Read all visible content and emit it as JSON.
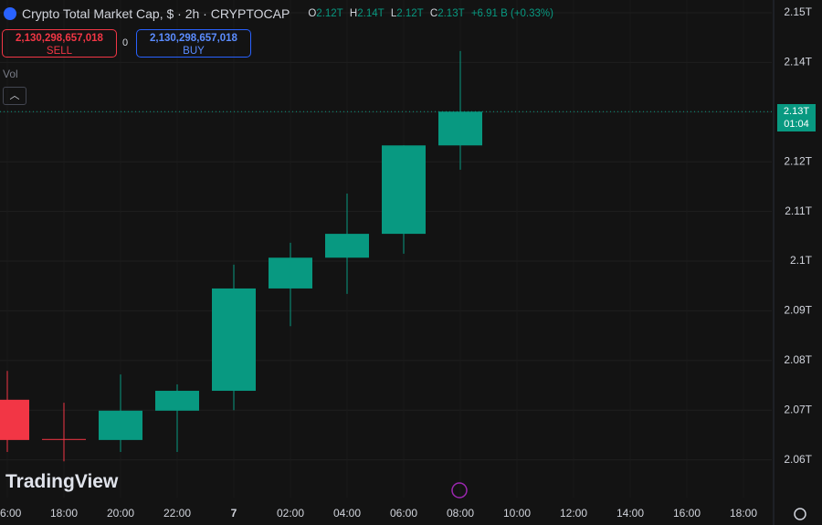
{
  "header": {
    "title": "Crypto Total Market Cap, $ · 2h · CRYPTOCAP",
    "ohlc": [
      {
        "key": "O",
        "value": "2.12T"
      },
      {
        "key": "H",
        "value": "2.14T"
      },
      {
        "key": "L",
        "value": "2.12T"
      },
      {
        "key": "C",
        "value": "2.13T"
      }
    ],
    "change": "+6.91 B (+0.33%)"
  },
  "trade": {
    "sell_price": "2,130,298,657,018",
    "sell_label": "SELL",
    "spread": "0",
    "buy_price": "2,130,298,657,018",
    "buy_label": "BUY"
  },
  "volume_label": "Vol",
  "logo": "TradingView",
  "price_tag": {
    "label": "2.13T",
    "countdown": "01:04"
  },
  "chart_data": {
    "type": "candlestick",
    "categories": [
      "6:00",
      "18:00",
      "20:00",
      "22:00",
      "7",
      "02:00",
      "04:00",
      "06:00",
      "08:00",
      "10:00",
      "12:00",
      "14:00",
      "16:00",
      "18:00"
    ],
    "open": [
      2.0721,
      2.0642,
      2.064,
      2.0699,
      2.0739,
      2.0945,
      2.1007,
      2.1055,
      2.1233,
      null,
      null,
      null,
      null,
      null
    ],
    "high": [
      2.0779,
      2.0715,
      2.0772,
      2.0752,
      2.0993,
      2.1037,
      2.1136,
      2.1233,
      2.1423,
      null,
      null,
      null,
      null,
      null
    ],
    "low": [
      2.0616,
      2.0597,
      2.0616,
      2.0616,
      2.07,
      2.0869,
      2.0934,
      2.1015,
      2.1184,
      null,
      null,
      null,
      null,
      null
    ],
    "close": [
      2.064,
      2.0642,
      2.0699,
      2.0739,
      2.0945,
      2.1007,
      2.1055,
      2.1233,
      2.1301,
      null,
      null,
      null,
      null,
      null
    ],
    "up_color": "#089981",
    "down_color": "#f23645",
    "ylim": [
      2.0524,
      2.15
    ],
    "yticks": [
      {
        "value": 2.06,
        "label": "2.06T"
      },
      {
        "value": 2.07,
        "label": "2.07T"
      },
      {
        "value": 2.08,
        "label": "2.08T"
      },
      {
        "value": 2.09,
        "label": "2.09T"
      },
      {
        "value": 2.1,
        "label": "2.1T"
      },
      {
        "value": 2.11,
        "label": "2.11T"
      },
      {
        "value": 2.12,
        "label": "2.12T"
      },
      {
        "value": 2.13,
        "label": "2.13T"
      },
      {
        "value": 2.14,
        "label": "2.14T"
      },
      {
        "value": 2.15,
        "label": "2.15T"
      }
    ],
    "grid": true
  }
}
